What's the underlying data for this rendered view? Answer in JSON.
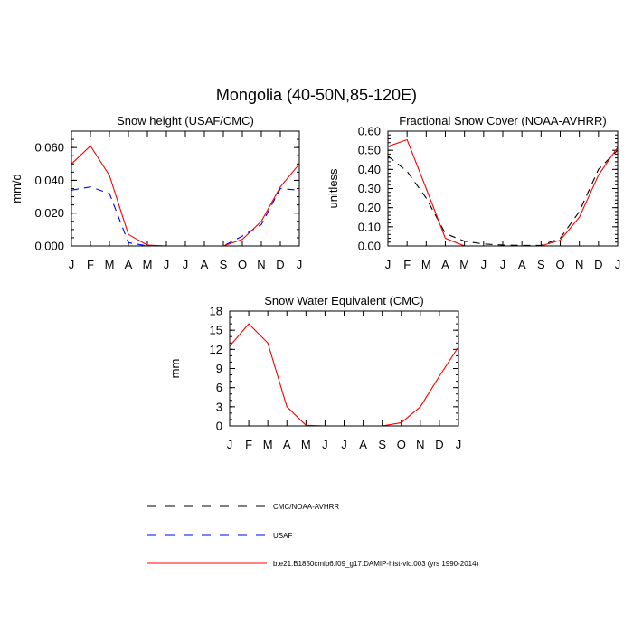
{
  "figure": {
    "title": "Mongolia (40-50N,85-120E)"
  },
  "colors": {
    "obs_cmc": "#000000",
    "usaf": "#0000ff",
    "model": "#ff0000"
  },
  "legend": {
    "entries": [
      {
        "label": "CMC/NOAA-AVHRR",
        "color": "#000000",
        "dash": "dashed"
      },
      {
        "label": "USAF",
        "color": "#0000ff",
        "dash": "dashed"
      },
      {
        "label": "b.e21.B1850cmip6.f09_g17.DAMIP-hist-vlc.003 (yrs 1990-2014)",
        "color": "#ff0000",
        "dash": "solid"
      }
    ]
  },
  "chart_data": [
    {
      "type": "line",
      "title": "Snow height (USAF/CMC)",
      "xlabel": "",
      "ylabel": "mm/d",
      "categories": [
        "J",
        "F",
        "M",
        "A",
        "M",
        "J",
        "J",
        "A",
        "S",
        "O",
        "N",
        "D",
        "J"
      ],
      "ylim": [
        0,
        0.07
      ],
      "yticks": [
        0.0,
        0.02,
        0.04,
        0.06
      ],
      "ytick_labels": [
        "0.000",
        "0.020",
        "0.040",
        "0.060"
      ],
      "yminor_step": 0.005,
      "series": [
        {
          "name": "CMC/NOAA-AVHRR",
          "color": "#000000",
          "dash": "dashed",
          "values": [
            0,
            0,
            0,
            0,
            0,
            0,
            0,
            0,
            0,
            0,
            0,
            0,
            0
          ]
        },
        {
          "name": "USAF",
          "color": "#0000ff",
          "dash": "dashed",
          "values": [
            0.034,
            0.036,
            0.032,
            0.002,
            0.0,
            0.0,
            0.0,
            0.0,
            0.0,
            0.006,
            0.013,
            0.035,
            0.034
          ]
        },
        {
          "name": "b.e21.B1850cmip6.f09_g17.DAMIP-hist-vlc.003 (yrs 1990-2014)",
          "color": "#ff0000",
          "dash": "solid",
          "values": [
            0.05,
            0.061,
            0.043,
            0.007,
            0.0005,
            0.0,
            0.0,
            0.0,
            0.0,
            0.004,
            0.015,
            0.036,
            0.05
          ]
        }
      ]
    },
    {
      "type": "line",
      "title": "Fractional Snow Cover (NOAA-AVHRR)",
      "xlabel": "",
      "ylabel": "unitless",
      "categories": [
        "J",
        "F",
        "M",
        "A",
        "M",
        "J",
        "J",
        "A",
        "S",
        "O",
        "N",
        "D",
        "J"
      ],
      "ylim": [
        0,
        0.6
      ],
      "yticks": [
        0.0,
        0.1,
        0.2,
        0.3,
        0.4,
        0.5,
        0.6
      ],
      "ytick_labels": [
        "0.00",
        "0.10",
        "0.20",
        "0.30",
        "0.40",
        "0.50",
        "0.60"
      ],
      "yminor_step": 0.02,
      "series": [
        {
          "name": "CMC/NOAA-AVHRR",
          "color": "#000000",
          "dash": "dashed",
          "values": [
            0.47,
            0.39,
            0.25,
            0.065,
            0.025,
            0.01,
            0.005,
            0.003,
            0.003,
            0.04,
            0.18,
            0.4,
            0.5
          ]
        },
        {
          "name": "b.e21.B1850cmip6.f09_g17.DAMIP-hist-vlc.003 (yrs 1990-2014)",
          "color": "#ff0000",
          "dash": "solid",
          "values": [
            0.52,
            0.555,
            0.3,
            0.04,
            0.0,
            0.0,
            0.0,
            0.0,
            0.0,
            0.03,
            0.15,
            0.37,
            0.515
          ]
        }
      ]
    },
    {
      "type": "line",
      "title": "Snow Water Equivalent (CMC)",
      "xlabel": "",
      "ylabel": "mm",
      "categories": [
        "J",
        "F",
        "M",
        "A",
        "M",
        "J",
        "J",
        "A",
        "S",
        "O",
        "N",
        "D",
        "J"
      ],
      "ylim": [
        0,
        18
      ],
      "yticks": [
        0,
        3,
        6,
        9,
        12,
        15,
        18
      ],
      "ytick_labels": [
        "0",
        "3",
        "6",
        "9",
        "12",
        "15",
        "18"
      ],
      "yminor_step": 1,
      "series": [
        {
          "name": "CMC/NOAA-AVHRR",
          "color": "#000000",
          "dash": "dashed",
          "values": [
            0,
            0,
            0,
            0,
            0,
            0,
            0,
            0,
            0,
            0,
            0,
            0,
            0
          ]
        },
        {
          "name": "b.e21.B1850cmip6.f09_g17.DAMIP-hist-vlc.003 (yrs 1990-2014)",
          "color": "#ff0000",
          "dash": "solid",
          "values": [
            12.5,
            16.0,
            13.0,
            3.0,
            0.1,
            0.0,
            0.0,
            0.0,
            0.0,
            0.5,
            3.0,
            7.8,
            12.4
          ]
        }
      ]
    }
  ]
}
